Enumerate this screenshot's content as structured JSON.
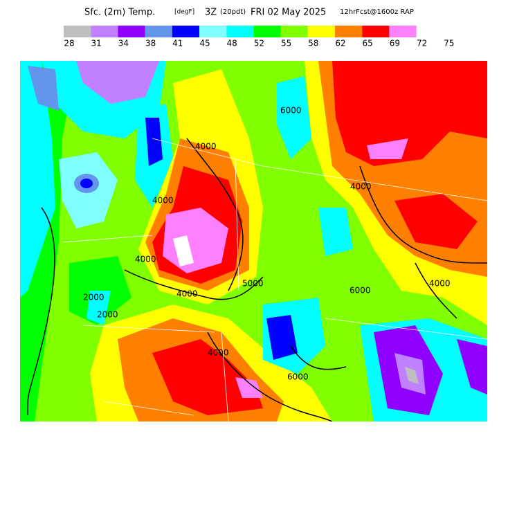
{
  "header": {
    "title_parts": [
      "Sfc. (2m) Temp.",
      "[degF]",
      "3Z",
      "(20pdt)",
      "FRI 02 May 2025",
      "12hrFcst@1600z RAP"
    ]
  },
  "colorbar": {
    "colors": [
      "#bebebe",
      "#c080ff",
      "#9000ff",
      "#6495ed",
      "#0000ff",
      "#80ffff",
      "#00ffff",
      "#00ff00",
      "#80ff00",
      "#ffff00",
      "#ff8000",
      "#ff0000",
      "#ff80ff"
    ],
    "labels": [
      28,
      31,
      34,
      38,
      41,
      45,
      48,
      52,
      55,
      58,
      62,
      65,
      69,
      72,
      75
    ]
  },
  "contour_labels": [
    "4000",
    "4000",
    "4000",
    "6000",
    "4000",
    "2000",
    "2000",
    "4000",
    "5000",
    "6000",
    "4000",
    "6000",
    "4000"
  ]
}
